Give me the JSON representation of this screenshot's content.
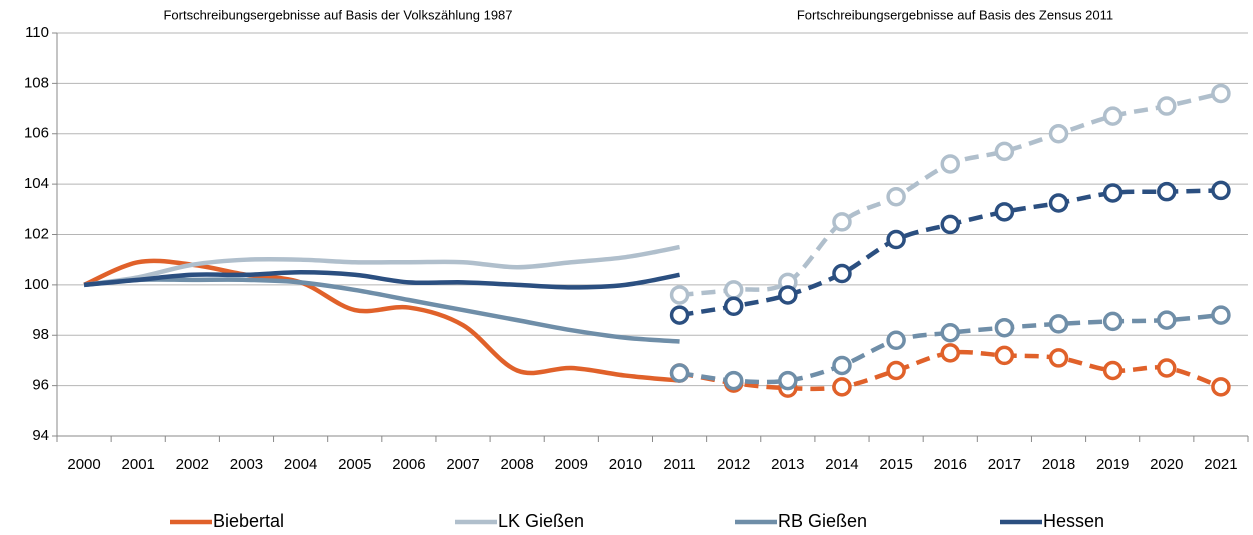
{
  "chart_data": {
    "type": "line",
    "annotations": [
      "Fortschreibungsergebnisse auf Basis der Volkszählung 1987",
      "Fortschreibungsergebnisse auf Basis des Zensus 2011"
    ],
    "categories": [
      "2000",
      "2001",
      "2002",
      "2003",
      "2004",
      "2005",
      "2006",
      "2007",
      "2008",
      "2009",
      "2010",
      "2011",
      "2012",
      "2013",
      "2014",
      "2015",
      "2016",
      "2017",
      "2018",
      "2019",
      "2020",
      "2021"
    ],
    "ylim": [
      94,
      110
    ],
    "yticks": [
      94,
      96,
      98,
      100,
      102,
      104,
      106,
      108,
      110
    ],
    "grid": true,
    "series": [
      {
        "name": "Biebertal",
        "color": "#e0612a",
        "values": [
          100,
          100.9,
          100.8,
          100.4,
          100.1,
          99.0,
          99.1,
          98.4,
          96.6,
          96.7,
          96.4,
          96.2,
          null,
          null,
          null,
          null,
          null,
          null,
          null,
          null,
          null,
          null
        ],
        "dashed_values": [
          null,
          null,
          null,
          null,
          null,
          null,
          null,
          null,
          null,
          null,
          null,
          96.5,
          96.1,
          95.9,
          95.95,
          96.6,
          97.3,
          97.2,
          97.1,
          96.6,
          96.7,
          95.95
        ]
      },
      {
        "name": "LK Gießen",
        "color": "#b0bfcc",
        "values": [
          100,
          100.3,
          100.8,
          101.0,
          101.0,
          100.9,
          100.9,
          100.9,
          100.7,
          100.9,
          101.1,
          101.5,
          null,
          null,
          null,
          null,
          null,
          null,
          null,
          null,
          null,
          null
        ],
        "dashed_values": [
          null,
          null,
          null,
          null,
          null,
          null,
          null,
          null,
          null,
          null,
          null,
          99.6,
          99.8,
          100.1,
          102.5,
          103.5,
          104.8,
          105.3,
          106.0,
          106.7,
          107.1,
          107.6
        ]
      },
      {
        "name": "RB Gießen",
        "color": "#6f8ea8",
        "values": [
          100,
          100.2,
          100.2,
          100.2,
          100.1,
          99.8,
          99.4,
          99.0,
          98.6,
          98.2,
          97.9,
          97.75,
          null,
          null,
          null,
          null,
          null,
          null,
          null,
          null,
          null,
          null
        ],
        "dashed_values": [
          null,
          null,
          null,
          null,
          null,
          null,
          null,
          null,
          null,
          null,
          null,
          96.5,
          96.2,
          96.2,
          96.8,
          97.8,
          98.1,
          98.3,
          98.45,
          98.55,
          98.6,
          98.8
        ]
      },
      {
        "name": "Hessen",
        "color": "#2b4f80",
        "values": [
          100,
          100.2,
          100.4,
          100.4,
          100.5,
          100.4,
          100.1,
          100.1,
          100.0,
          99.9,
          100.0,
          100.4,
          null,
          null,
          null,
          null,
          null,
          null,
          null,
          null,
          null,
          null
        ],
        "dashed_values": [
          null,
          null,
          null,
          null,
          null,
          null,
          null,
          null,
          null,
          null,
          null,
          98.8,
          99.15,
          99.6,
          100.45,
          101.8,
          102.4,
          102.9,
          103.25,
          103.65,
          103.7,
          103.75
        ]
      }
    ]
  }
}
